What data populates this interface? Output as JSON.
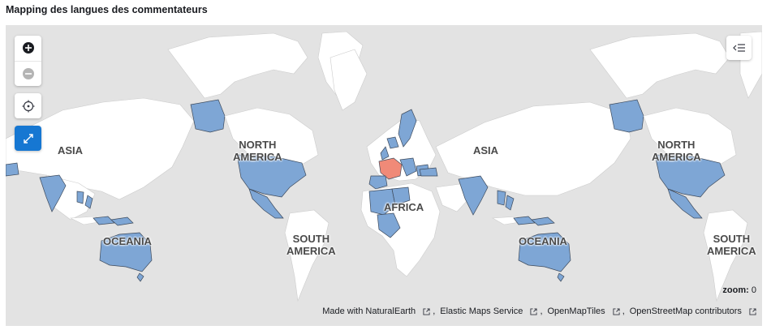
{
  "panel": {
    "title": "Mapping des langues des commentateurs"
  },
  "map": {
    "zoom_label": "zoom:",
    "zoom_value": "0",
    "colors": {
      "ocean": "#e3e3e3",
      "land": "#ffffff",
      "highlight": "#7ea6d5",
      "hot": "#f08a78",
      "accent": "#1677d2"
    },
    "continent_labels": [
      {
        "text": "ASIA"
      },
      {
        "text": "NORTH\nAMERICA"
      },
      {
        "text": "AFRICA"
      },
      {
        "text": "ASIA"
      },
      {
        "text": "NORTH\nAMERICA"
      },
      {
        "text": "OCEANIA"
      },
      {
        "text": "SOUTH\nAMERICA"
      },
      {
        "text": "OCEANIA"
      },
      {
        "text": "SOUTH\nAMERICA"
      }
    ],
    "controls": {
      "zoom_in": "plus-circle-icon",
      "zoom_out": "minus-circle-icon",
      "locate": "crosshair-icon",
      "fullscreen": "expand-icon",
      "legend": "legend-toggle-icon"
    }
  },
  "attribution": [
    {
      "text": "Made with NaturalEarth"
    },
    {
      "text": "Elastic Maps Service"
    },
    {
      "text": "OpenMapTiles"
    },
    {
      "text": "OpenStreetMap contributors"
    }
  ]
}
